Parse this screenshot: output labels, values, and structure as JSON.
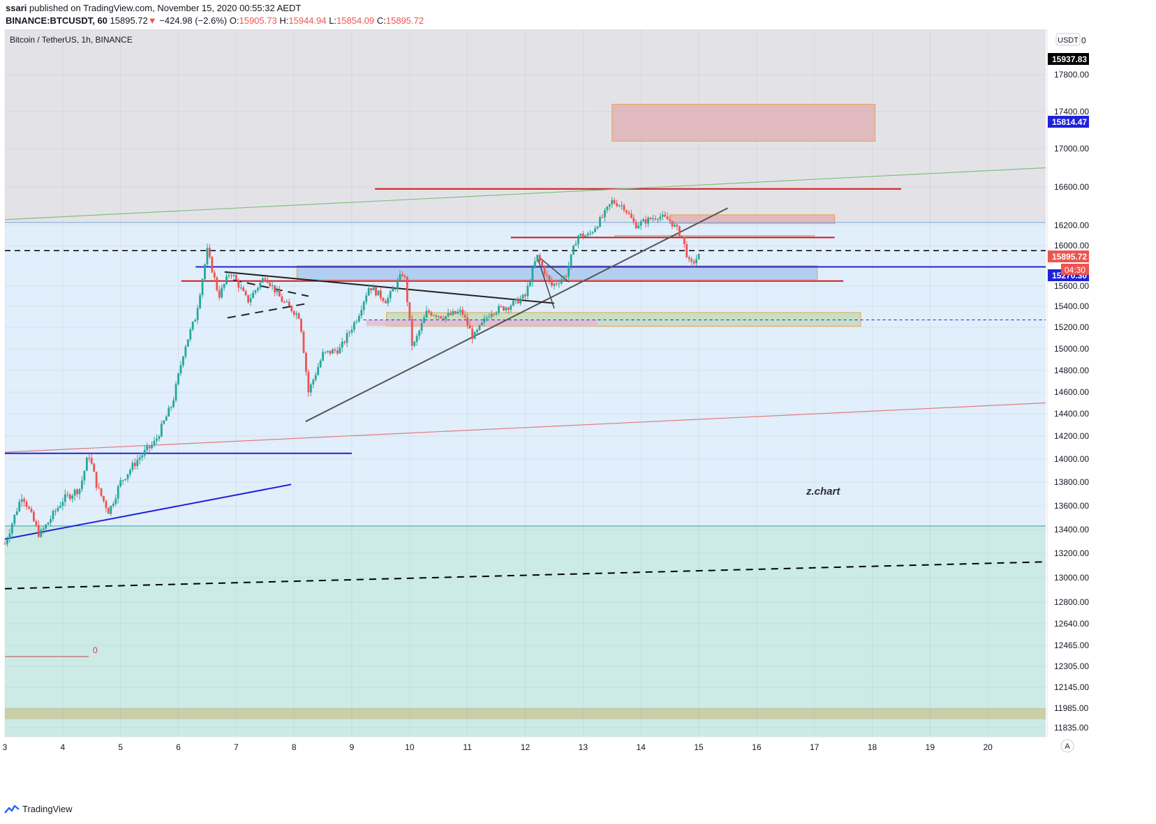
{
  "header": {
    "author": "ssari",
    "published_text": "published on TradingView.com, November 15, 2020 00:55:32 AEDT"
  },
  "quote": {
    "symbol": "BINANCE:BTCUSDT, 60",
    "last": "15895.72",
    "arrow": "▼",
    "change": "−424.98 (−2.6%)",
    "o_label": "O:",
    "o": "15905.73",
    "h_label": "H:",
    "h": "15944.94",
    "l_label": "L:",
    "l": "15854.09",
    "c_label": "C:",
    "c": "15895.72"
  },
  "colors": {
    "up": "#26a69a",
    "down": "#ef5350",
    "zone_grey": "#e3e3e7",
    "zone_blue": "#e1eefb",
    "zone_teal": "#cceae6",
    "zone_khaki": "#c9cfa9",
    "accent_blue": "#1e22d8",
    "line_red": "#d3171b"
  },
  "chart_data": {
    "type": "candlestick",
    "title": "Bitcoin / TetherUS, 1h, BINANCE",
    "currency": "USDT",
    "watermark": "z.chart",
    "price_labels": {
      "top": "15937.83",
      "level": "15814.47",
      "last": "15895.72",
      "countdown": "04:30",
      "lower": "15270.30",
      "top_clipped": "0"
    },
    "y_ticks": [
      {
        "label": "17800.00",
        "value": 17800
      },
      {
        "label": "17400.00",
        "value": 17400
      },
      {
        "label": "17000.00",
        "value": 17000
      },
      {
        "label": "16600.00",
        "value": 16600
      },
      {
        "label": "16200.00",
        "value": 16200
      },
      {
        "label": "16000.00",
        "value": 16000
      },
      {
        "label": "15600.00",
        "value": 15600
      },
      {
        "label": "15400.00",
        "value": 15400
      },
      {
        "label": "15200.00",
        "value": 15200
      },
      {
        "label": "15000.00",
        "value": 15000
      },
      {
        "label": "14800.00",
        "value": 14800
      },
      {
        "label": "14600.00",
        "value": 14600
      },
      {
        "label": "14400.00",
        "value": 14400
      },
      {
        "label": "14200.00",
        "value": 14200
      },
      {
        "label": "14000.00",
        "value": 14000
      },
      {
        "label": "13800.00",
        "value": 13800
      },
      {
        "label": "13600.00",
        "value": 13600
      },
      {
        "label": "13400.00",
        "value": 13400
      },
      {
        "label": "13200.00",
        "value": 13200
      },
      {
        "label": "13000.00",
        "value": 13000
      },
      {
        "label": "12800.00",
        "value": 12800
      },
      {
        "label": "12640.00",
        "value": 12640
      },
      {
        "label": "12465.00",
        "value": 12465
      },
      {
        "label": "12305.00",
        "value": 12305
      },
      {
        "label": "12145.00",
        "value": 12145
      },
      {
        "label": "11985.00",
        "value": 11985
      },
      {
        "label": "11835.00",
        "value": 11835
      }
    ],
    "x_ticks": [
      "3",
      "4",
      "5",
      "6",
      "7",
      "8",
      "9",
      "10",
      "11",
      "12",
      "13",
      "14",
      "15",
      "16",
      "17",
      "18",
      "19",
      "20"
    ],
    "x_range": [
      3,
      21
    ],
    "candle_path": [
      {
        "x": 3.0,
        "v": 13280
      },
      {
        "x": 3.3,
        "v": 13700
      },
      {
        "x": 3.6,
        "v": 13350
      },
      {
        "x": 4.0,
        "v": 13650
      },
      {
        "x": 4.3,
        "v": 13750
      },
      {
        "x": 4.45,
        "v": 14050
      },
      {
        "x": 4.6,
        "v": 13750
      },
      {
        "x": 4.8,
        "v": 13550
      },
      {
        "x": 5.0,
        "v": 13800
      },
      {
        "x": 5.3,
        "v": 14000
      },
      {
        "x": 5.6,
        "v": 14150
      },
      {
        "x": 5.9,
        "v": 14500
      },
      {
        "x": 6.1,
        "v": 15000
      },
      {
        "x": 6.3,
        "v": 15300
      },
      {
        "x": 6.5,
        "v": 15950
      },
      {
        "x": 6.7,
        "v": 15500
      },
      {
        "x": 6.9,
        "v": 15750
      },
      {
        "x": 7.2,
        "v": 15450
      },
      {
        "x": 7.5,
        "v": 15700
      },
      {
        "x": 7.8,
        "v": 15450
      },
      {
        "x": 8.1,
        "v": 15300
      },
      {
        "x": 8.25,
        "v": 14600
      },
      {
        "x": 8.5,
        "v": 14950
      },
      {
        "x": 8.8,
        "v": 15000
      },
      {
        "x": 9.1,
        "v": 15300
      },
      {
        "x": 9.3,
        "v": 15600
      },
      {
        "x": 9.6,
        "v": 15450
      },
      {
        "x": 9.9,
        "v": 15750
      },
      {
        "x": 10.05,
        "v": 15000
      },
      {
        "x": 10.3,
        "v": 15350
      },
      {
        "x": 10.6,
        "v": 15300
      },
      {
        "x": 10.9,
        "v": 15350
      },
      {
        "x": 11.1,
        "v": 15100
      },
      {
        "x": 11.4,
        "v": 15350
      },
      {
        "x": 11.7,
        "v": 15400
      },
      {
        "x": 12.0,
        "v": 15500
      },
      {
        "x": 12.2,
        "v": 15900
      },
      {
        "x": 12.45,
        "v": 15600
      },
      {
        "x": 12.7,
        "v": 15700
      },
      {
        "x": 12.9,
        "v": 16100
      },
      {
        "x": 13.1,
        "v": 16100
      },
      {
        "x": 13.35,
        "v": 16300
      },
      {
        "x": 13.5,
        "v": 16450
      },
      {
        "x": 13.7,
        "v": 16400
      },
      {
        "x": 13.9,
        "v": 16200
      },
      {
        "x": 14.1,
        "v": 16250
      },
      {
        "x": 14.3,
        "v": 16300
      },
      {
        "x": 14.5,
        "v": 16250
      },
      {
        "x": 14.7,
        "v": 16100
      },
      {
        "x": 14.85,
        "v": 15800
      },
      {
        "x": 15.0,
        "v": 15895
      }
    ],
    "annotations": {
      "zones": [
        {
          "name": "resistance-zone-top",
          "x1": 13.5,
          "x2": 18.05,
          "y1": 17080,
          "y2": 17480,
          "fill": "#dfb3b7",
          "stroke": "#e8a34e"
        },
        {
          "name": "small-red-zone",
          "x1": 14.5,
          "x2": 17.35,
          "y1": 16220,
          "y2": 16310,
          "fill": "#e3b1b8",
          "stroke": "#e8a34e"
        },
        {
          "name": "thin-zone",
          "x1": 13.55,
          "x2": 17.0,
          "y1": 16080,
          "y2": 16100,
          "fill": "#d9c6b3",
          "stroke": "#e8a34e"
        },
        {
          "name": "blue-zone",
          "x1": 8.05,
          "x2": 17.05,
          "y1": 15665,
          "y2": 15800,
          "fill": "#a9c9f0",
          "stroke": "#e8a34e"
        },
        {
          "name": "green-zone",
          "x1": 9.6,
          "x2": 17.8,
          "y1": 15210,
          "y2": 15340,
          "fill": "#c4dcbb",
          "stroke": "#e8a34e"
        },
        {
          "name": "pink-zone",
          "x1": 9.25,
          "x2": 13.25,
          "y1": 15210,
          "y2": 15270,
          "fill": "#e3bccd",
          "stroke": "none"
        }
      ],
      "hlines": [
        {
          "name": "red-level-16580",
          "x1": 9.4,
          "x2": 18.5,
          "y": 16580,
          "color": "#d3171b",
          "width": 2
        },
        {
          "name": "red-level-16080",
          "x1": 11.75,
          "x2": 17.35,
          "y": 16080,
          "color": "#d3171b",
          "width": 2
        },
        {
          "name": "blue-level-15790",
          "x1": 6.3,
          "x2": 21.0,
          "y": 15790,
          "color": "#1e22d8",
          "width": 2
        },
        {
          "name": "red-level-15650",
          "x1": 6.05,
          "x2": 17.5,
          "y": 15650,
          "color": "#d3171b",
          "width": 2
        },
        {
          "name": "blue-level-14050",
          "x1": 3.0,
          "x2": 9.0,
          "y": 14050,
          "color": "#1e22d8",
          "width": 2
        },
        {
          "name": "dashed-level-15950",
          "x1": 3.0,
          "x2": 21.0,
          "y": 15950,
          "color": "#000000",
          "width": 1.5,
          "dash": "8,6"
        },
        {
          "name": "dashed-level-15270",
          "x1": 9.2,
          "x2": 21.0,
          "y": 15270,
          "color": "#1e22d8",
          "width": 1,
          "dash": "4,4"
        },
        {
          "name": "zone-boundary-16230",
          "x1": 3.0,
          "x2": 21.0,
          "y": 16230,
          "color": "#7aa3d6",
          "width": 1
        },
        {
          "name": "zone-boundary-13430",
          "x1": 3.0,
          "x2": 21.0,
          "y": 13430,
          "color": "#35a68f",
          "width": 1
        },
        {
          "name": "fib-zero-line",
          "x1": 3.0,
          "x2": 4.45,
          "y": 12380,
          "color": "#c0474a",
          "width": 1
        }
      ],
      "trendlines": [
        {
          "name": "green-channel-line",
          "x1": 3.0,
          "y1": 16260,
          "x2": 21.0,
          "y2": 16800,
          "color": "#7fbf7f",
          "width": 1.2
        },
        {
          "name": "red-channel-line",
          "x1": 3.0,
          "y1": 14060,
          "x2": 21.0,
          "y2": 14500,
          "color": "#e07a7a",
          "width": 1.2
        },
        {
          "name": "dashed-channel-line",
          "x1": 3.0,
          "y1": 12910,
          "x2": 21.0,
          "y2": 13130,
          "color": "#000000",
          "width": 2,
          "dash": "10,8"
        },
        {
          "name": "blue-support-trendline",
          "x1": 3.0,
          "y1": 13320,
          "x2": 7.95,
          "y2": 13780,
          "color": "#1e22d8",
          "width": 2
        },
        {
          "name": "rising-support-trendline",
          "x1": 8.2,
          "y1": 14330,
          "x2": 15.5,
          "y2": 16380,
          "color": "#555555",
          "width": 2
        },
        {
          "name": "falling-resistance-trendline",
          "x1": 6.8,
          "y1": 15740,
          "x2": 12.5,
          "y2": 15430,
          "color": "#222222",
          "width": 2
        },
        {
          "name": "flag-upper-line",
          "x1": 6.95,
          "y1": 15660,
          "x2": 8.25,
          "y2": 15500,
          "color": "#222222",
          "width": 2,
          "dash": "12,8"
        },
        {
          "name": "flag-lower-line",
          "x1": 6.85,
          "y1": 15290,
          "x2": 8.25,
          "y2": 15430,
          "color": "#222222",
          "width": 2,
          "dash": "12,8"
        },
        {
          "name": "pattern-leg-1",
          "x1": 12.2,
          "y1": 15900,
          "x2": 12.5,
          "y2": 15380,
          "color": "#444444",
          "width": 1.5
        },
        {
          "name": "pattern-leg-2",
          "x1": 12.25,
          "y1": 15880,
          "x2": 12.75,
          "y2": 15640,
          "color": "#444444",
          "width": 1.5
        }
      ],
      "bands": [
        {
          "name": "khaki-band",
          "y1": 11900,
          "y2": 11985,
          "fill": "#c9cfa9"
        }
      ]
    }
  },
  "footer": {
    "brand": "TradingView"
  }
}
